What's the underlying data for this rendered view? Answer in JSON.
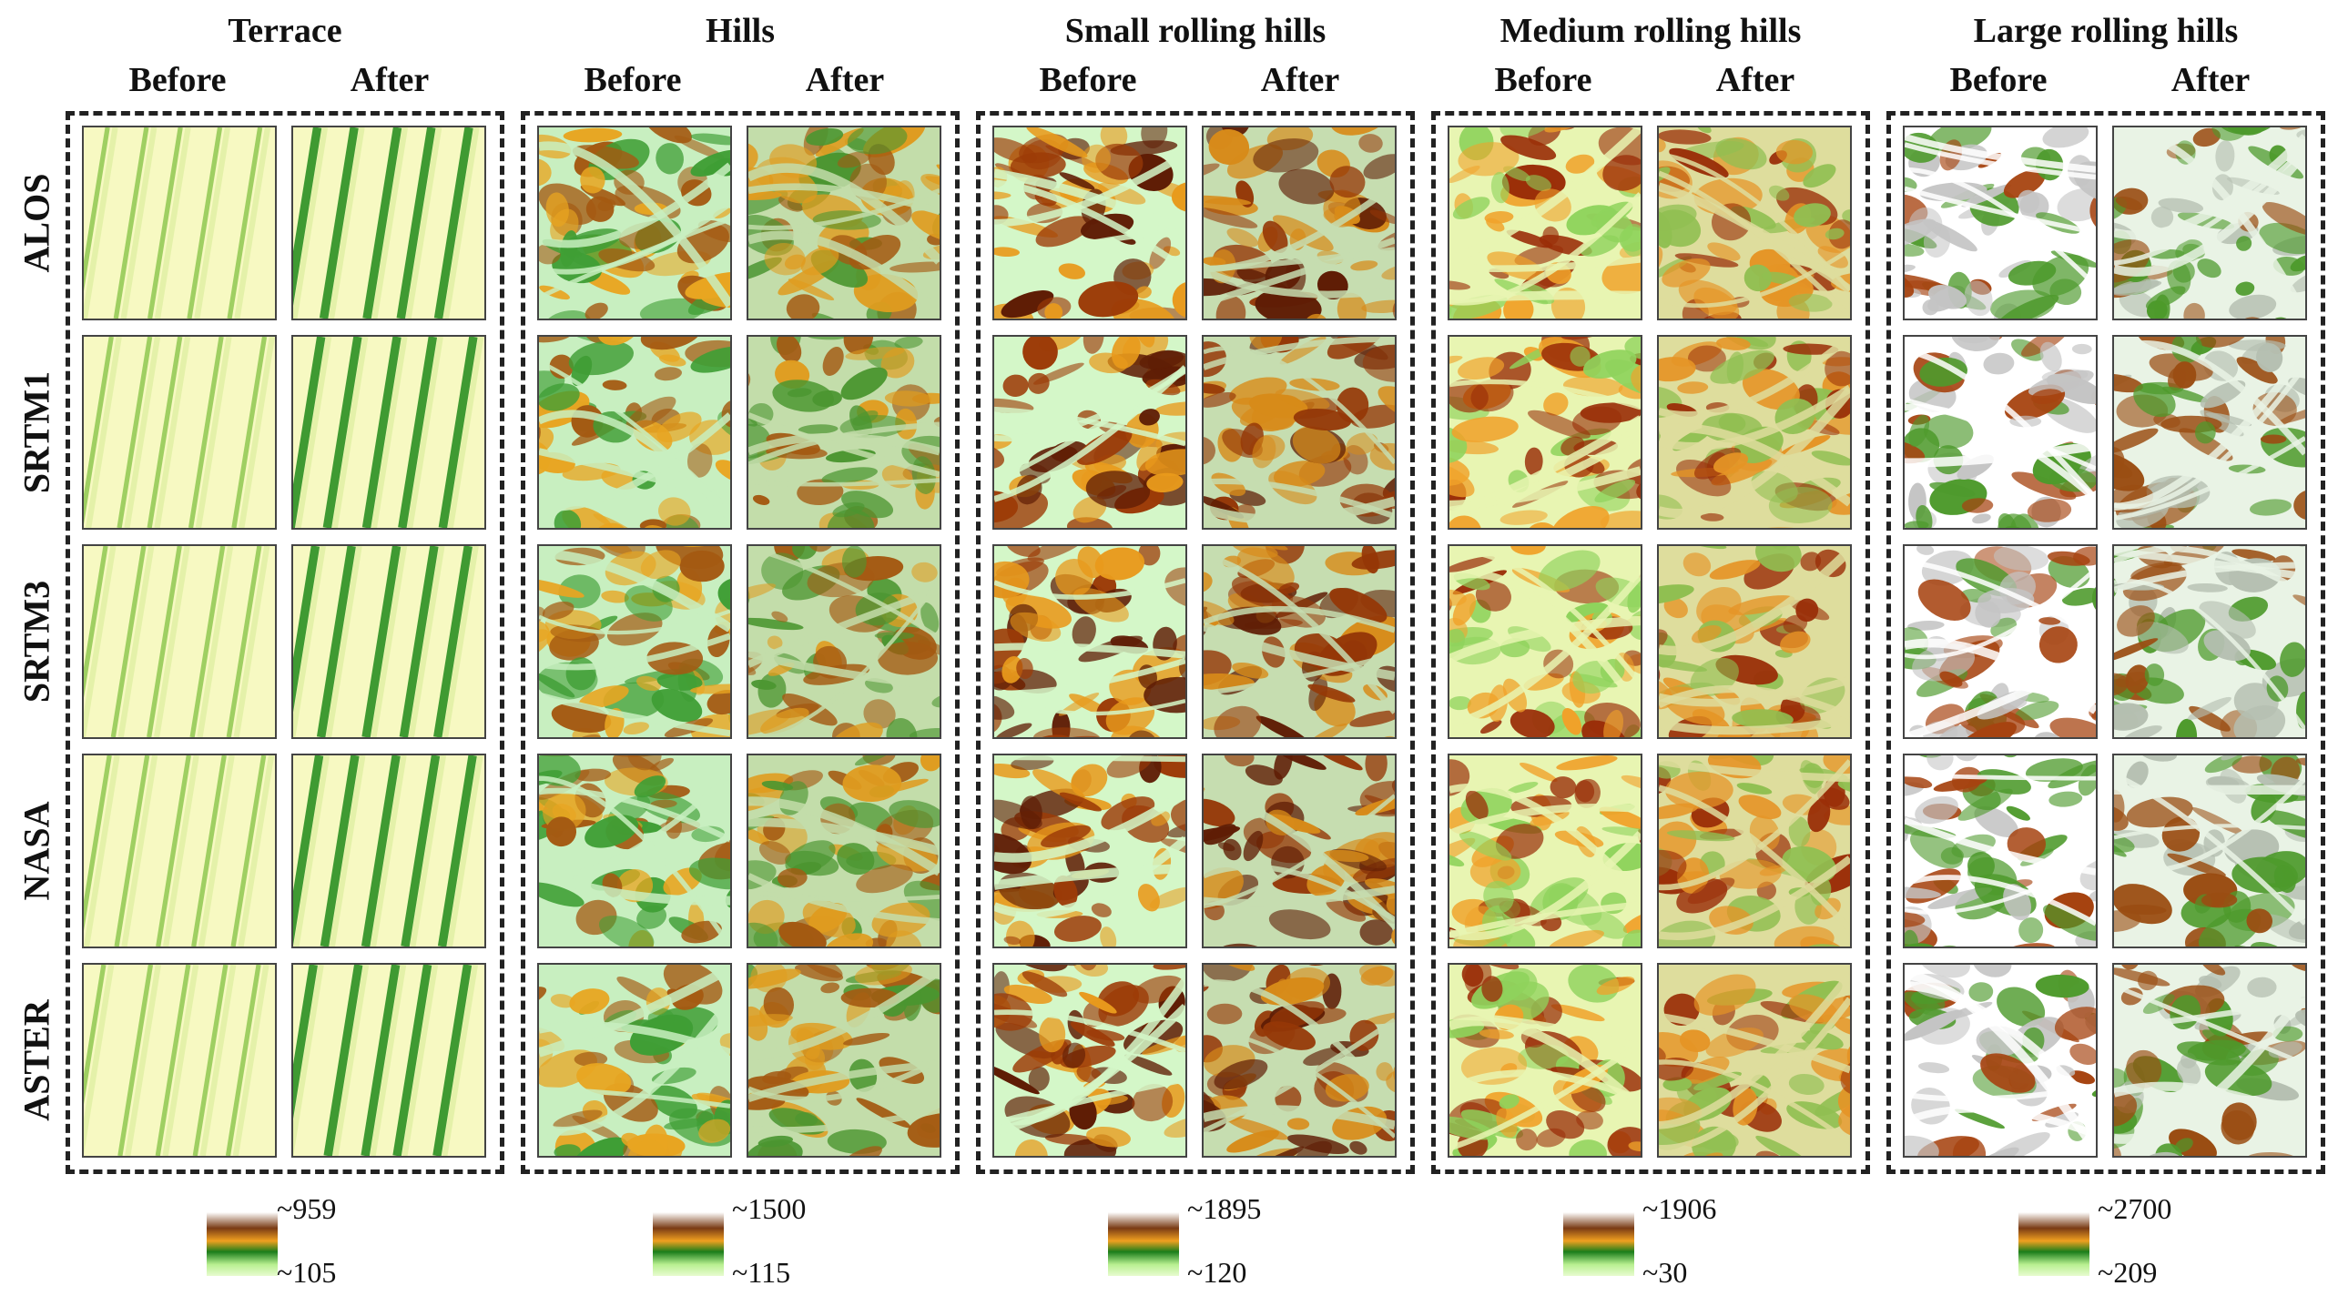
{
  "groups": [
    {
      "title": "Terrace",
      "before": "Before",
      "after": "After",
      "max": "~959",
      "min": "~105",
      "palette": "terrace"
    },
    {
      "title": "Hills",
      "before": "Before",
      "after": "After",
      "max": "~1500",
      "min": "~115",
      "palette": "hills"
    },
    {
      "title": "Small rolling hills",
      "before": "Before",
      "after": "After",
      "max": "~1895",
      "min": "~120",
      "palette": "small"
    },
    {
      "title": "Medium rolling hills",
      "before": "Before",
      "after": "After",
      "max": "~1906",
      "min": "~30",
      "palette": "medium"
    },
    {
      "title": "Large rolling hills",
      "before": "Before",
      "after": "After",
      "max": "~2700",
      "min": "~209",
      "palette": "large"
    }
  ],
  "rows": [
    "ALOS",
    "SRTM1",
    "SRTM3",
    "NASA",
    "ASTER"
  ],
  "colors": {
    "terrace": [
      "#f7f9c2",
      "#dcee9e",
      "#9fcf62",
      "#3f9a32"
    ],
    "hills": [
      "#c8efc0",
      "#3f9e35",
      "#e8a521",
      "#a45a12"
    ],
    "small": [
      "#d4f7c8",
      "#e89a1c",
      "#9c3b07",
      "#5f1d05"
    ],
    "medium": [
      "#e8f5b2",
      "#8fd35c",
      "#f0a22a",
      "#9a2e08"
    ],
    "large": [
      "#ffffff",
      "#c4c4c4",
      "#a64310",
      "#4e9a2c"
    ],
    "legend": [
      "#ffffff",
      "#8a4a1c",
      "#f4b02a",
      "#1a8a1a",
      "#c8f4a0"
    ]
  }
}
